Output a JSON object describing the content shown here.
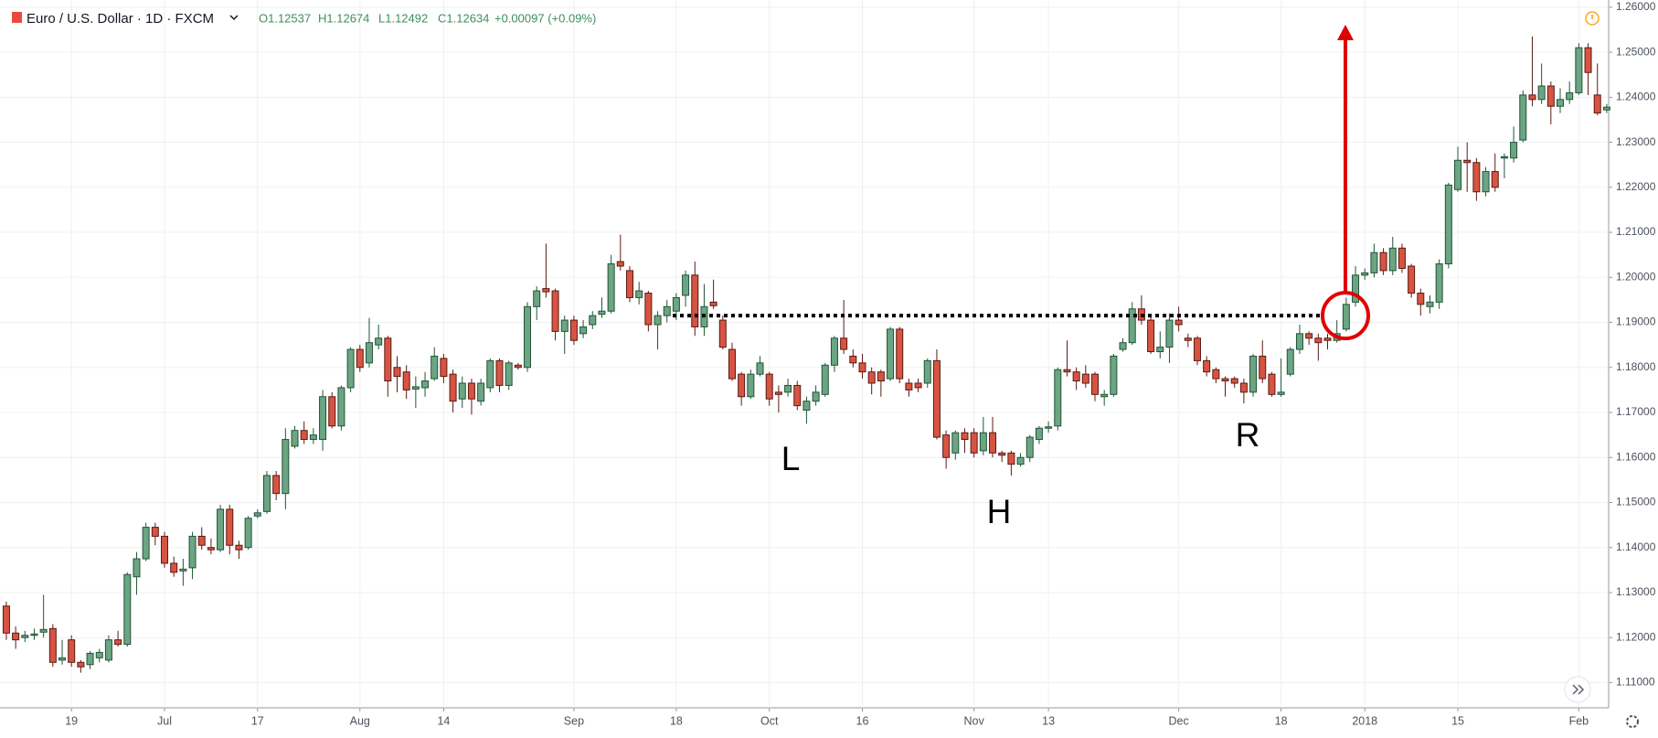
{
  "header": {
    "symbol": "Euro / U.S. Dollar · 1D · FXCM",
    "open": "O1.12537",
    "high": "H1.12674",
    "low": "L1.12492",
    "close": "C1.12634",
    "change": "+0.00097 (+0.09%)"
  },
  "chart_data": {
    "type": "candlestick",
    "up_color": "#6ba583",
    "down_color": "#d75442",
    "categories": [
      null,
      null,
      null,
      null,
      null,
      null,
      null,
      "19",
      null,
      null,
      null,
      null,
      null,
      null,
      null,
      null,
      null,
      "Jul",
      null,
      null,
      null,
      null,
      null,
      null,
      null,
      null,
      null,
      "17",
      null,
      null,
      null,
      null,
      null,
      null,
      null,
      null,
      null,
      null,
      "Aug",
      null,
      null,
      null,
      null,
      null,
      null,
      null,
      null,
      "14",
      null,
      null,
      null,
      null,
      null,
      null,
      null,
      null,
      null,
      null,
      null,
      null,
      null,
      "Sep",
      null,
      null,
      null,
      null,
      null,
      null,
      null,
      null,
      null,
      null,
      "18",
      null,
      null,
      null,
      null,
      null,
      null,
      null,
      null,
      null,
      "Oct",
      null,
      null,
      null,
      null,
      null,
      null,
      null,
      null,
      null,
      "16",
      null,
      null,
      null,
      null,
      null,
      null,
      null,
      null,
      null,
      null,
      null,
      "Nov",
      null,
      null,
      null,
      null,
      null,
      null,
      null,
      "13",
      null,
      null,
      null,
      null,
      null,
      null,
      null,
      null,
      null,
      null,
      null,
      null,
      null,
      "Dec",
      null,
      null,
      null,
      null,
      null,
      null,
      null,
      null,
      null,
      null,
      "18",
      null,
      null,
      null,
      null,
      null,
      null,
      null,
      null,
      "2018",
      null,
      null,
      null,
      null,
      null,
      null,
      null,
      null,
      null,
      "15",
      null,
      null,
      null,
      null,
      null,
      null,
      null,
      null,
      null,
      null,
      null,
      null,
      "Feb",
      null,
      null,
      null
    ],
    "open": [
      1.127,
      1.121,
      1.12,
      1.1205,
      1.1212,
      1.122,
      1.115,
      1.1195,
      1.1145,
      1.114,
      1.1155,
      1.115,
      1.1195,
      1.1185,
      1.1335,
      1.1375,
      1.1445,
      1.1425,
      1.1365,
      1.1348,
      1.1355,
      1.1425,
      1.14,
      1.1395,
      1.1485,
      1.1405,
      1.14,
      1.147,
      1.148,
      1.156,
      1.152,
      1.1625,
      1.166,
      1.164,
      1.164,
      1.1735,
      1.167,
      1.1755,
      1.184,
      1.181,
      1.185,
      1.1865,
      1.18,
      1.179,
      1.1752,
      1.1755,
      1.1775,
      1.182,
      1.1785,
      1.173,
      1.1765,
      1.1725,
      1.1755,
      1.1815,
      1.176,
      1.1805,
      1.18,
      1.1935,
      1.1975,
      1.197,
      1.188,
      1.1905,
      1.1875,
      1.1895,
      1.1918,
      1.1925,
      1.2035,
      1.2015,
      1.1955,
      1.1965,
      1.1895,
      1.1915,
      1.1925,
      1.196,
      1.2005,
      1.189,
      1.1945,
      1.1905,
      1.184,
      1.1785,
      1.1735,
      1.1785,
      1.1785,
      1.1745,
      1.1745,
      1.176,
      1.1705,
      1.1725,
      1.174,
      1.1805,
      1.1865,
      1.1825,
      1.181,
      1.179,
      1.179,
      1.1775,
      1.1885,
      1.1765,
      1.1765,
      1.1765,
      1.1815,
      1.165,
      1.161,
      1.1655,
      1.1655,
      1.1615,
      1.1655,
      1.161,
      1.161,
      1.1585,
      1.16,
      1.164,
      1.1665,
      1.167,
      1.1795,
      1.179,
      1.1785,
      1.1785,
      1.1735,
      1.174,
      1.184,
      1.1855,
      1.193,
      1.1905,
      1.1835,
      1.1845,
      1.1905,
      1.1865,
      1.1865,
      1.1815,
      1.1795,
      1.1775,
      1.1775,
      1.1765,
      1.1745,
      1.1825,
      1.1785,
      1.174,
      1.1785,
      1.184,
      1.1875,
      1.1865,
      1.1865,
      1.186,
      1.1885,
      1.1945,
      1.2005,
      1.201,
      1.2055,
      1.2015,
      1.2065,
      1.2025,
      1.1965,
      1.1935,
      1.1945,
      1.203,
      1.2195,
      1.226,
      1.2255,
      1.219,
      1.2235,
      1.2265,
      1.2265,
      1.2305,
      1.2405,
      1.2395,
      1.2425,
      1.238,
      1.2395,
      1.241,
      1.251,
      1.2405,
      1.2372
    ],
    "high": [
      1.128,
      1.1225,
      1.1215,
      1.122,
      1.1295,
      1.123,
      1.1195,
      1.1205,
      1.115,
      1.117,
      1.1175,
      1.1205,
      1.1215,
      1.1345,
      1.139,
      1.1455,
      1.1455,
      1.1435,
      1.138,
      1.1375,
      1.1435,
      1.1445,
      1.142,
      1.1495,
      1.1495,
      1.1415,
      1.147,
      1.1485,
      1.157,
      1.157,
      1.1665,
      1.167,
      1.168,
      1.1665,
      1.175,
      1.1745,
      1.176,
      1.1845,
      1.185,
      1.191,
      1.1895,
      1.187,
      1.1825,
      1.1805,
      1.178,
      1.179,
      1.1845,
      1.183,
      1.1795,
      1.178,
      1.1775,
      1.1775,
      1.182,
      1.182,
      1.1815,
      1.181,
      1.1945,
      1.198,
      1.2075,
      1.1975,
      1.1915,
      1.1915,
      1.1905,
      1.1925,
      1.1955,
      1.205,
      1.2095,
      1.2025,
      1.199,
      1.197,
      1.1925,
      1.195,
      1.1965,
      1.2015,
      1.2035,
      1.1985,
      1.1995,
      1.1915,
      1.1855,
      1.179,
      1.1795,
      1.1825,
      1.179,
      1.176,
      1.1775,
      1.177,
      1.1735,
      1.176,
      1.181,
      1.187,
      1.195,
      1.184,
      1.183,
      1.18,
      1.1795,
      1.189,
      1.189,
      1.1775,
      1.1775,
      1.182,
      1.184,
      1.166,
      1.166,
      1.1665,
      1.1665,
      1.169,
      1.169,
      1.1615,
      1.1615,
      1.161,
      1.165,
      1.167,
      1.168,
      1.18,
      1.186,
      1.18,
      1.1805,
      1.179,
      1.175,
      1.183,
      1.1865,
      1.1945,
      1.196,
      1.1915,
      1.188,
      1.192,
      1.1935,
      1.1875,
      1.187,
      1.1825,
      1.18,
      1.178,
      1.178,
      1.1775,
      1.183,
      1.186,
      1.179,
      1.182,
      1.1845,
      1.1895,
      1.188,
      1.1875,
      1.1875,
      1.1905,
      1.1955,
      1.2025,
      1.202,
      1.2075,
      1.2065,
      1.209,
      1.2075,
      1.203,
      1.1975,
      1.196,
      1.204,
      1.221,
      1.229,
      1.23,
      1.2265,
      1.2245,
      1.2275,
      1.2275,
      1.2335,
      1.2415,
      1.2535,
      1.2475,
      1.2435,
      1.242,
      1.2435,
      1.252,
      1.252,
      1.2475,
      1.2385
    ],
    "low": [
      1.1195,
      1.1175,
      1.119,
      1.1195,
      1.12,
      1.1135,
      1.114,
      1.1135,
      1.1122,
      1.113,
      1.1145,
      1.1145,
      1.118,
      1.118,
      1.1295,
      1.137,
      1.1405,
      1.1355,
      1.1335,
      1.1315,
      1.133,
      1.1395,
      1.1385,
      1.139,
      1.1385,
      1.1375,
      1.1395,
      1.1465,
      1.1475,
      1.1505,
      1.1485,
      1.162,
      1.163,
      1.163,
      1.1615,
      1.1665,
      1.166,
      1.1745,
      1.179,
      1.18,
      1.184,
      1.1735,
      1.1745,
      1.173,
      1.171,
      1.1735,
      1.177,
      1.1765,
      1.17,
      1.171,
      1.1695,
      1.1715,
      1.1745,
      1.1745,
      1.175,
      1.1795,
      1.179,
      1.1905,
      1.1955,
      1.186,
      1.183,
      1.185,
      1.1865,
      1.1885,
      1.191,
      1.192,
      1.2015,
      1.1945,
      1.194,
      1.188,
      1.184,
      1.19,
      1.1905,
      1.1935,
      1.187,
      1.187,
      1.193,
      1.184,
      1.177,
      1.1715,
      1.173,
      1.178,
      1.1715,
      1.17,
      1.1735,
      1.1705,
      1.1675,
      1.1715,
      1.1735,
      1.179,
      1.183,
      1.18,
      1.1775,
      1.174,
      1.1735,
      1.177,
      1.1765,
      1.1735,
      1.1745,
      1.1755,
      1.164,
      1.1575,
      1.1595,
      1.161,
      1.16,
      1.1605,
      1.16,
      1.159,
      1.156,
      1.158,
      1.159,
      1.163,
      1.1655,
      1.166,
      1.178,
      1.175,
      1.1755,
      1.1725,
      1.1715,
      1.1735,
      1.1835,
      1.185,
      1.1895,
      1.183,
      1.182,
      1.181,
      1.188,
      1.1845,
      1.1805,
      1.178,
      1.1765,
      1.1735,
      1.1755,
      1.172,
      1.1735,
      1.1765,
      1.1735,
      1.1735,
      1.178,
      1.183,
      1.185,
      1.1815,
      1.184,
      1.1855,
      1.188,
      1.1935,
      1.1995,
      1.2,
      1.2005,
      1.2005,
      1.201,
      1.1955,
      1.1915,
      1.192,
      1.193,
      1.202,
      1.219,
      1.219,
      1.217,
      1.218,
      1.219,
      1.222,
      1.2255,
      1.23,
      1.238,
      1.2385,
      1.234,
      1.2365,
      1.2385,
      1.2405,
      1.2405,
      1.236,
      1.2365
    ],
    "close": [
      1.121,
      1.1195,
      1.1205,
      1.1208,
      1.1218,
      1.1145,
      1.1155,
      1.1145,
      1.1135,
      1.1165,
      1.1167,
      1.1195,
      1.1185,
      1.134,
      1.1375,
      1.1445,
      1.1425,
      1.1365,
      1.1345,
      1.1352,
      1.1425,
      1.1405,
      1.1395,
      1.1485,
      1.1405,
      1.1395,
      1.1465,
      1.1477,
      1.156,
      1.152,
      1.164,
      1.166,
      1.164,
      1.165,
      1.1735,
      1.167,
      1.1755,
      1.184,
      1.18,
      1.1855,
      1.1865,
      1.177,
      1.178,
      1.175,
      1.1757,
      1.177,
      1.1825,
      1.178,
      1.1725,
      1.1765,
      1.173,
      1.1765,
      1.1815,
      1.176,
      1.181,
      1.18,
      1.1935,
      1.197,
      1.1968,
      1.188,
      1.1905,
      1.186,
      1.189,
      1.1915,
      1.1925,
      1.203,
      1.2025,
      1.1955,
      1.197,
      1.1895,
      1.1915,
      1.1935,
      1.1955,
      1.2005,
      1.189,
      1.1935,
      1.1937,
      1.1845,
      1.1775,
      1.1735,
      1.1785,
      1.181,
      1.173,
      1.174,
      1.176,
      1.1715,
      1.1725,
      1.1745,
      1.1805,
      1.1865,
      1.184,
      1.181,
      1.179,
      1.1765,
      1.177,
      1.1885,
      1.1775,
      1.175,
      1.1755,
      1.1815,
      1.1645,
      1.16,
      1.1655,
      1.164,
      1.161,
      1.1655,
      1.161,
      1.1605,
      1.1585,
      1.16,
      1.1645,
      1.1665,
      1.1668,
      1.1795,
      1.179,
      1.177,
      1.1765,
      1.174,
      1.174,
      1.1825,
      1.1855,
      1.193,
      1.1905,
      1.1835,
      1.1845,
      1.1905,
      1.1895,
      1.186,
      1.1815,
      1.179,
      1.1775,
      1.177,
      1.1765,
      1.1745,
      1.1825,
      1.1775,
      1.174,
      1.1745,
      1.184,
      1.1875,
      1.1865,
      1.1855,
      1.186,
      1.1875,
      1.194,
      1.2005,
      1.201,
      1.2055,
      1.2015,
      1.2065,
      1.202,
      1.1965,
      1.194,
      1.1945,
      1.203,
      1.2205,
      1.226,
      1.2255,
      1.219,
      1.2235,
      1.22,
      1.2268,
      1.23,
      1.2405,
      1.2395,
      1.2425,
      1.238,
      1.2395,
      1.241,
      1.251,
      1.2455,
      1.2365,
      1.2378
    ],
    "ylim": [
      1.1044,
      1.2616
    ],
    "yticks": [
      {
        "value": 1.11,
        "label": "1.11000"
      },
      {
        "value": 1.12,
        "label": "1.12000"
      },
      {
        "value": 1.13,
        "label": "1.13000"
      },
      {
        "value": 1.14,
        "label": "1.14000"
      },
      {
        "value": 1.15,
        "label": "1.15000"
      },
      {
        "value": 1.16,
        "label": "1.16000"
      },
      {
        "value": 1.17,
        "label": "1.17000"
      },
      {
        "value": 1.18,
        "label": "1.18000"
      },
      {
        "value": 1.19,
        "label": "1.19000"
      },
      {
        "value": 1.2,
        "label": "1.20000"
      },
      {
        "value": 1.21,
        "label": "1.21000"
      },
      {
        "value": 1.22,
        "label": "1.22000"
      },
      {
        "value": 1.23,
        "label": "1.23000"
      },
      {
        "value": 1.24,
        "label": "1.24000"
      },
      {
        "value": 1.25,
        "label": "1.25000"
      },
      {
        "value": 1.26,
        "label": "1.26000"
      }
    ],
    "grid": true,
    "neckline": 1.1915,
    "annotations": [
      "L",
      "H",
      "R"
    ]
  }
}
